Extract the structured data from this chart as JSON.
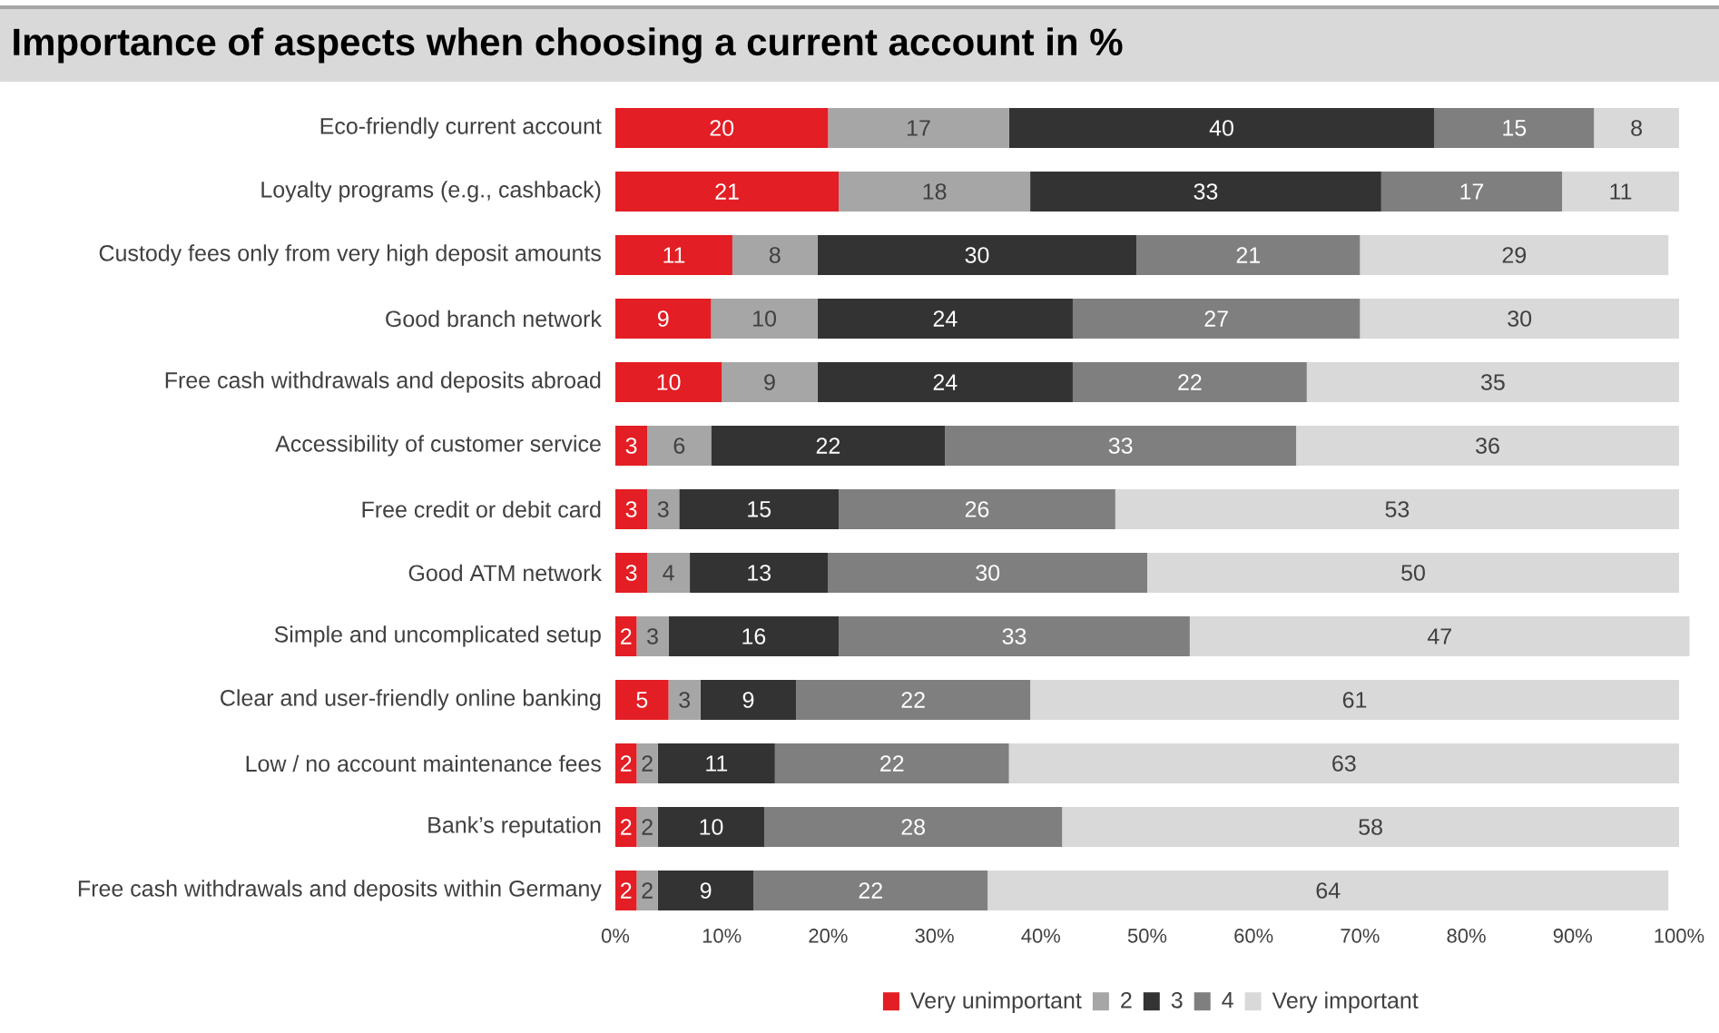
{
  "chart_data": {
    "type": "bar",
    "orientation": "horizontal",
    "stacked": true,
    "title": "Importance of aspects when choosing a current account in %",
    "categories": [
      "Eco-friendly current account",
      "Loyalty programs (e.g., cashback)",
      "Custody fees only from very high deposit amounts",
      "Good branch network",
      "Free cash withdrawals and deposits abroad",
      "Accessibility of customer service",
      "Free credit or debit card",
      "Good ATM network",
      "Simple and uncomplicated setup",
      "Clear and user-friendly online banking",
      "Low / no account maintenance fees",
      "Bank’s reputation",
      "Free cash withdrawals and deposits within Germany"
    ],
    "series": [
      {
        "name": "Very unimportant",
        "color": "#e31e24",
        "values": [
          20,
          21,
          11,
          9,
          10,
          3,
          3,
          3,
          2,
          5,
          2,
          2,
          2
        ]
      },
      {
        "name": "2",
        "color": "#a6a6a6",
        "values": [
          17,
          18,
          8,
          10,
          9,
          6,
          3,
          4,
          3,
          3,
          2,
          2,
          2
        ]
      },
      {
        "name": "3",
        "color": "#333333",
        "values": [
          40,
          33,
          30,
          24,
          24,
          22,
          15,
          13,
          16,
          9,
          11,
          10,
          9
        ]
      },
      {
        "name": "4",
        "color": "#7f7f7f",
        "values": [
          15,
          17,
          21,
          27,
          22,
          33,
          26,
          30,
          33,
          22,
          22,
          28,
          22
        ]
      },
      {
        "name": "Very important",
        "color": "#d9d9d9",
        "values": [
          8,
          11,
          29,
          30,
          35,
          36,
          53,
          50,
          47,
          61,
          63,
          58,
          64
        ]
      }
    ],
    "xlim": [
      0,
      101
    ],
    "xticks": [
      {
        "value": 0,
        "label": "0%"
      },
      {
        "value": 10,
        "label": "10%"
      },
      {
        "value": 20,
        "label": "20%"
      },
      {
        "value": 30,
        "label": "30%"
      },
      {
        "value": 40,
        "label": "40%"
      },
      {
        "value": 50,
        "label": "50%"
      },
      {
        "value": 60,
        "label": "60%"
      },
      {
        "value": 70,
        "label": "70%"
      },
      {
        "value": 80,
        "label": "80%"
      },
      {
        "value": 90,
        "label": "90%"
      },
      {
        "value": 100,
        "label": "100%"
      }
    ],
    "data_labels": true,
    "legend": "bottom",
    "grid": false
  }
}
